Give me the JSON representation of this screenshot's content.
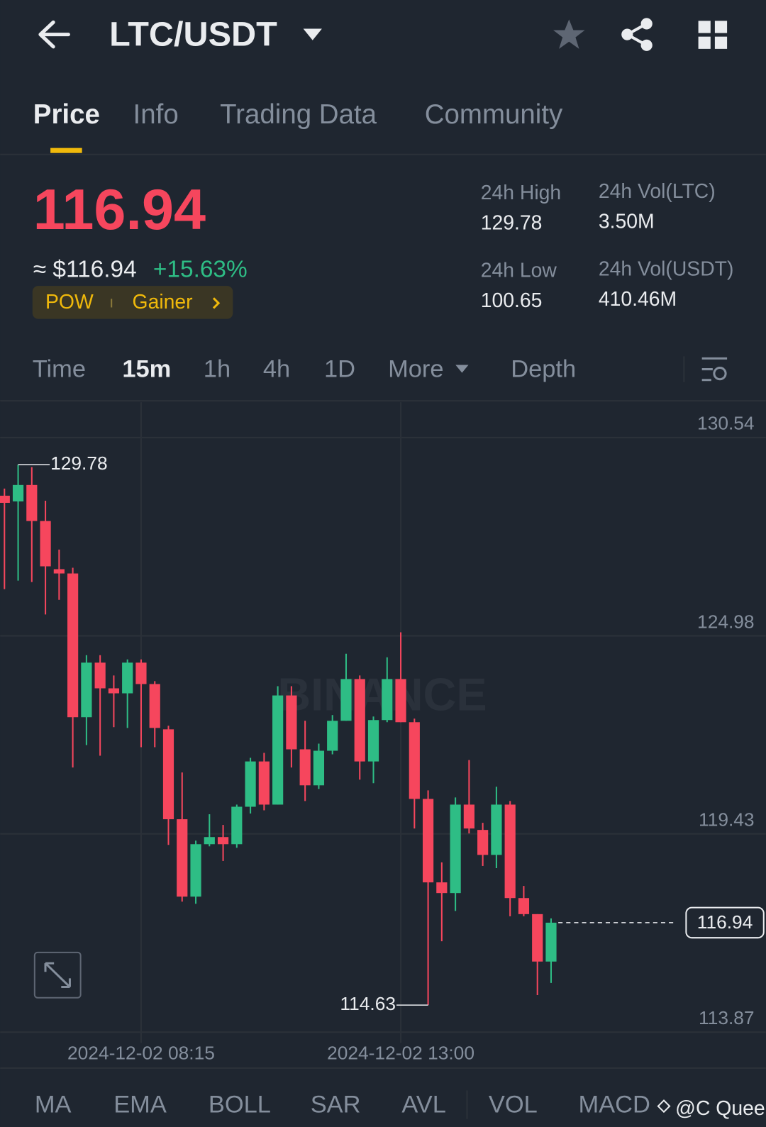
{
  "header": {
    "title": "LTC/USDT"
  },
  "tabs": [
    "Price",
    "Info",
    "Trading Data",
    "Community"
  ],
  "ticker": {
    "price": "116.94",
    "usd_price": "≈ $116.94",
    "change": "+15.63%",
    "tags": [
      "POW",
      "Gainer"
    ],
    "stats": [
      {
        "label": "24h High",
        "value": "129.78"
      },
      {
        "label": "24h Vol(LTC)",
        "value": "3.50M"
      },
      {
        "label": "24h Low",
        "value": "100.65"
      },
      {
        "label": "24h Vol(USDT)",
        "value": "410.46M"
      }
    ]
  },
  "intervals": [
    "Time",
    "15m",
    "1h",
    "4h",
    "1D",
    "More",
    "Depth"
  ],
  "chart_data": {
    "type": "candlestick",
    "watermark": "BINANCE",
    "up_color": "#2ebd85",
    "down_color": "#f6465d",
    "ylim": [
      113.87,
      131.53
    ],
    "yticks": [
      113.87,
      119.43,
      124.98,
      130.54
    ],
    "grid": true,
    "xticks": [
      {
        "value": 10,
        "label": "2024-12-02 08:15"
      },
      {
        "value": 29,
        "label": "2024-12-02 13:00"
      }
    ],
    "open": [
      128.91,
      128.75,
      129.21,
      128.2,
      126.85,
      126.73,
      122.7,
      124.23,
      123.51,
      123.37,
      124.23,
      123.63,
      122.36,
      119.84,
      117.67,
      119.14,
      119.34,
      119.14,
      120.19,
      121.46,
      120.25,
      123.31,
      121.8,
      120.79,
      121.76,
      122.6,
      123.77,
      121.46,
      122.62,
      123.77,
      122.56,
      120.41,
      118.07,
      117.77,
      120.25,
      119.54,
      118.84,
      120.25,
      117.63,
      117.18,
      115.85
    ],
    "high": [
      129.11,
      129.78,
      129.71,
      128.77,
      127.4,
      126.89,
      124.44,
      124.44,
      123.87,
      124.32,
      124.32,
      123.71,
      122.46,
      121.15,
      119.24,
      119.98,
      119.68,
      120.25,
      121.56,
      121.7,
      123.57,
      123.57,
      122.6,
      121.96,
      122.76,
      124.48,
      123.87,
      122.72,
      124.38,
      125.08,
      122.66,
      120.65,
      118.63,
      120.45,
      121.5,
      119.74,
      120.75,
      120.35,
      117.97,
      117.18,
      117.06
    ],
    "low": [
      126.29,
      126.53,
      126.49,
      125.58,
      125.99,
      121.29,
      121.92,
      121.62,
      122.42,
      122.4,
      121.86,
      121.86,
      119.12,
      117.53,
      117.47,
      119.08,
      118.67,
      119.04,
      120.0,
      120.09,
      120.25,
      121.29,
      120.35,
      120.69,
      121.66,
      122.6,
      120.95,
      120.85,
      122.56,
      122.56,
      119.58,
      114.63,
      116.42,
      117.27,
      119.44,
      118.53,
      118.47,
      117.12,
      117.12,
      114.91,
      115.25
    ],
    "close": [
      128.71,
      129.21,
      128.2,
      126.93,
      126.73,
      122.7,
      124.23,
      123.51,
      123.37,
      124.23,
      123.63,
      122.4,
      119.84,
      117.67,
      119.14,
      119.34,
      119.14,
      120.19,
      121.46,
      120.25,
      123.31,
      121.8,
      120.79,
      121.76,
      122.6,
      123.77,
      121.46,
      122.62,
      123.77,
      122.56,
      120.41,
      118.07,
      117.77,
      120.25,
      119.58,
      118.84,
      120.25,
      117.63,
      117.18,
      115.85,
      116.94
    ]
  },
  "indicators": [
    "MA",
    "EMA",
    "BOLL",
    "SAR",
    "AVL",
    "VOL",
    "MACD"
  ],
  "credit": "@C Queen"
}
